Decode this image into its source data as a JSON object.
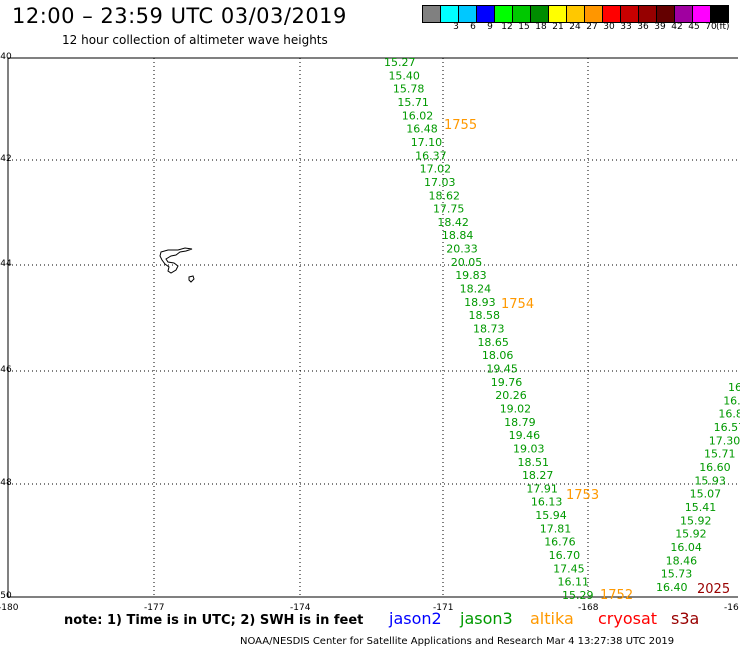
{
  "title": "12:00 – 23:59 UTC 03/03/2019",
  "subtitle": "12 hour collection of altimeter wave heights",
  "color_scale": {
    "unit": "(ft)",
    "bins": [
      {
        "label": "",
        "color": "#808080"
      },
      {
        "label": "3",
        "color": "#00ffff"
      },
      {
        "label": "6",
        "color": "#00c8ff"
      },
      {
        "label": "9",
        "color": "#0000ff"
      },
      {
        "label": "12",
        "color": "#00ff00"
      },
      {
        "label": "15",
        "color": "#00c800"
      },
      {
        "label": "18",
        "color": "#008c00"
      },
      {
        "label": "21",
        "color": "#ffff00"
      },
      {
        "label": "24",
        "color": "#ffc800"
      },
      {
        "label": "27",
        "color": "#ff9600"
      },
      {
        "label": "30",
        "color": "#ff0000"
      },
      {
        "label": "33",
        "color": "#c80000"
      },
      {
        "label": "36",
        "color": "#960000"
      },
      {
        "label": "39",
        "color": "#640000"
      },
      {
        "label": "42",
        "color": "#a000a0"
      },
      {
        "label": "45",
        "color": "#ff00ff"
      },
      {
        "label": "70",
        "color": "#000000"
      }
    ]
  },
  "axes": {
    "lat_labels": [
      "-40",
      "-42",
      "-44",
      "-46",
      "-48",
      "-50"
    ],
    "lon_labels": [
      "-180",
      "-177",
      "-174",
      "-171",
      "-168",
      "-16"
    ]
  },
  "tracks": [
    {
      "satellite": "jason3",
      "color": "#009900",
      "values": [
        "15.27",
        "15.40",
        "15.78",
        "15.71",
        "16.02",
        "16.48",
        "17.10",
        "16.37",
        "17.02",
        "17.03",
        "18.62",
        "17.75",
        "18.42",
        "18.84",
        "20.33",
        "20.05",
        "19.83",
        "18.24",
        "18.93",
        "18.58",
        "18.73",
        "18.65",
        "18.06",
        "19.45",
        "19.76",
        "20.26",
        "19.02",
        "18.79",
        "19.46",
        "19.03",
        "18.51",
        "18.27",
        "17.91",
        "16.13",
        "15.94",
        "17.81",
        "16.76",
        "16.70",
        "17.45",
        "16.11",
        "15.29"
      ]
    },
    {
      "satellite": "jason3",
      "color": "#009900",
      "values": [
        "16.40",
        "15.73",
        "18.46",
        "16.04",
        "15.92",
        "15.92",
        "15.41",
        "15.07",
        "15.93",
        "16.60",
        "15.71",
        "17.30",
        "16.57",
        "16.8",
        "16.",
        "16"
      ]
    }
  ],
  "time_tags": [
    {
      "text": "1755",
      "color": "#ff9900"
    },
    {
      "text": "1754",
      "color": "#ff9900"
    },
    {
      "text": "1753",
      "color": "#ff9900"
    },
    {
      "text": "1752",
      "color": "#ff9900"
    },
    {
      "text": "2025",
      "color": "#990000"
    }
  ],
  "note": "note:  1) Time is in UTC;  2) SWH is in feet",
  "satellites": [
    {
      "name": "jason2",
      "color": "#0000ff"
    },
    {
      "name": "jason3",
      "color": "#009900"
    },
    {
      "name": "altika",
      "color": "#ff9900"
    },
    {
      "name": "cryosat",
      "color": "#ff0000"
    },
    {
      "name": "s3a",
      "color": "#990000"
    }
  ],
  "footer": "NOAA/NESDIS Center for Satellite Applications and Research   Mar  4 13:27:38 UTC 2019"
}
